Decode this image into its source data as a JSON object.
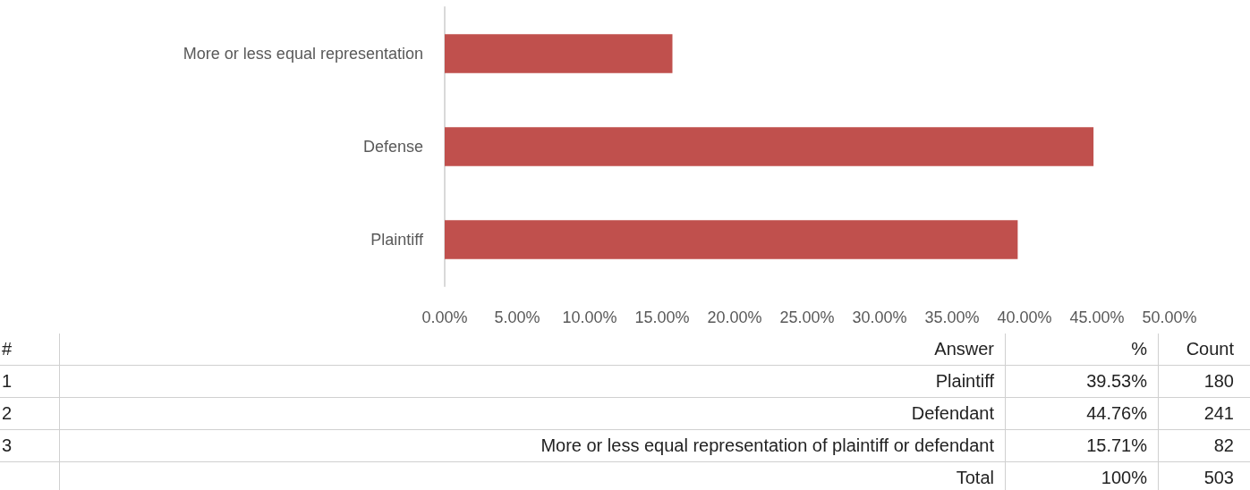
{
  "chart_data": [
    {
      "type": "bar",
      "orientation": "horizontal",
      "categories": [
        "More or less equal representation",
        "Defense",
        "Plaintiff"
      ],
      "values": [
        15.71,
        44.76,
        39.53
      ],
      "color": "#c0504d",
      "xlim": [
        0,
        50
      ],
      "xticks": [
        {
          "value": 0,
          "label": "0.00%"
        },
        {
          "value": 5,
          "label": "5.00%"
        },
        {
          "value": 10,
          "label": "10.00%"
        },
        {
          "value": 15,
          "label": "15.00%"
        },
        {
          "value": 20,
          "label": "20.00%"
        },
        {
          "value": 25,
          "label": "25.00%"
        },
        {
          "value": 30,
          "label": "30.00%"
        },
        {
          "value": 35,
          "label": "35.00%"
        },
        {
          "value": 40,
          "label": "40.00%"
        },
        {
          "value": 45,
          "label": "45.00%"
        },
        {
          "value": 50,
          "label": "50.00%"
        }
      ],
      "grid": false
    },
    {
      "type": "other",
      "xlabel": "Answer",
      "categories": [
        "Plaintiff",
        "Defendant",
        "More or less equal representation of plaintiff or defendant"
      ],
      "series": [
        {
          "name": "%",
          "values": [
            39.53,
            44.76,
            15.71
          ],
          "value_labels": [
            "39.53%",
            "44.76%",
            "15.71%"
          ]
        },
        {
          "name": "Count",
          "values": [
            180,
            241,
            82
          ],
          "value_labels": [
            "180",
            "241",
            "82"
          ]
        }
      ],
      "annotations": [
        "#",
        "1",
        "2",
        "3",
        "Total",
        "100%",
        "503"
      ]
    }
  ]
}
